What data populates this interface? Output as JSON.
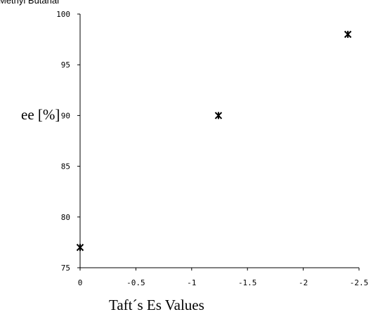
{
  "caption": "Methyl Butanal",
  "chart_data": {
    "type": "scatter",
    "title": "",
    "xlabel": "Taft´s Es Values",
    "ylabel": "ee [%]",
    "xlim": [
      0,
      -2.5
    ],
    "ylim": [
      75,
      100
    ],
    "x_ticks": [
      "0",
      "-0.5",
      "-1",
      "-1.5",
      "-2",
      "-2.5"
    ],
    "y_ticks": [
      "75",
      "80",
      "85",
      "90",
      "95",
      "100"
    ],
    "x_tick_values": [
      0,
      -0.5,
      -1,
      -1.5,
      -2,
      -2.5
    ],
    "y_tick_values": [
      75,
      80,
      85,
      90,
      95,
      100
    ],
    "grid": false,
    "legend": "none",
    "series": [
      {
        "marker": "asterisk",
        "color": "#000000",
        "points": [
          {
            "x": 0,
            "y": 77
          },
          {
            "x": -1.24,
            "y": 90
          },
          {
            "x": -2.4,
            "y": 98
          }
        ]
      }
    ]
  }
}
